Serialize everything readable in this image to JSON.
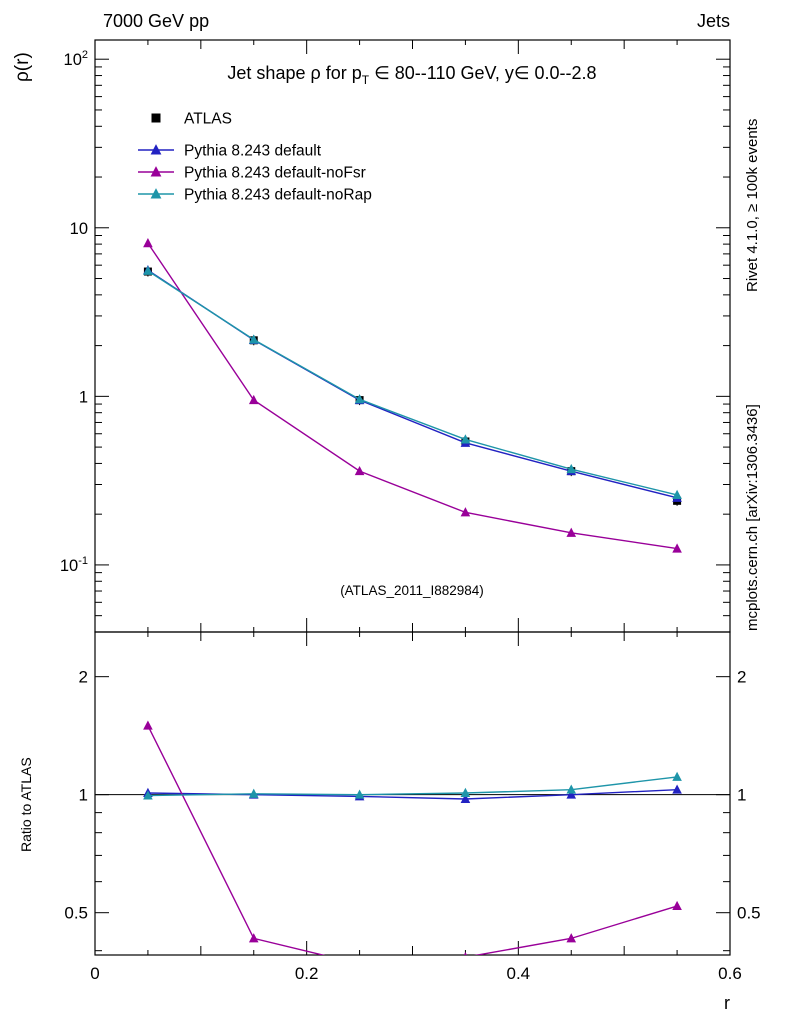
{
  "header": {
    "left_label": "7000 GeV pp",
    "right_label": "Jets"
  },
  "side_captions": {
    "top": "Rivet 4.1.0, ≥ 100k events",
    "bottom": "mcplots.cern.ch [arXiv:1306.3436]"
  },
  "watermark": "(ATLAS_2011_I882984)",
  "plot_title": {
    "prefix": "Jet shape ρ for p",
    "sub": "T",
    "suffix": " ∈ 80--110 GeV, y∈ 0.0--2.8"
  },
  "chart_data": {
    "type": "line",
    "title": "Jet shape ρ for pT ∈ 80--110 GeV, y ∈ 0.0--2.8",
    "xlabel": "r",
    "ylabel": "ρ(r)",
    "ratio_ylabel": "Ratio to ATLAS",
    "grid": false,
    "legend_position": "top-left",
    "x": [
      0.05,
      0.15,
      0.25,
      0.35,
      0.45,
      0.55
    ],
    "xlim": [
      0,
      0.6
    ],
    "xticks": [
      0,
      0.2,
      0.4,
      0.6
    ],
    "main_axis": {
      "scale": "log",
      "lim": [
        0.04,
        130
      ],
      "ticks": [
        0.1,
        1,
        10,
        100
      ]
    },
    "ratio_axis": {
      "scale": "log",
      "lim": [
        0.39,
        2.6
      ],
      "ticks": [
        0.5,
        1,
        2
      ]
    },
    "series": [
      {
        "name": "ATLAS",
        "color": "#000000",
        "marker": "square",
        "draw_line": false,
        "error_bars": true,
        "show_in_ratio": false,
        "values": [
          5.5,
          2.15,
          0.95,
          0.54,
          0.36,
          0.24
        ]
      },
      {
        "name": "Pythia 8.243 default",
        "color": "#2222c2",
        "marker": "triangle",
        "draw_line": true,
        "error_bars": false,
        "show_in_ratio": true,
        "values": [
          5.6,
          2.16,
          0.95,
          0.53,
          0.36,
          0.25
        ],
        "ratio": [
          1.01,
          1.0,
          0.99,
          0.975,
          1.0,
          1.03
        ]
      },
      {
        "name": "Pythia 8.243 default-noFsr",
        "color": "#990099",
        "marker": "triangle",
        "draw_line": true,
        "error_bars": false,
        "show_in_ratio": true,
        "values": [
          8.1,
          0.95,
          0.36,
          0.205,
          0.155,
          0.125
        ],
        "ratio": [
          1.5,
          0.43,
          0.37,
          0.385,
          0.43,
          0.52
        ]
      },
      {
        "name": "Pythia 8.243 default-noRap",
        "color": "#1e95a9",
        "marker": "triangle",
        "draw_line": true,
        "error_bars": false,
        "show_in_ratio": true,
        "values": [
          5.55,
          2.17,
          0.96,
          0.555,
          0.37,
          0.26
        ],
        "ratio": [
          0.995,
          1.005,
          1.0,
          1.01,
          1.03,
          1.11
        ]
      }
    ]
  }
}
